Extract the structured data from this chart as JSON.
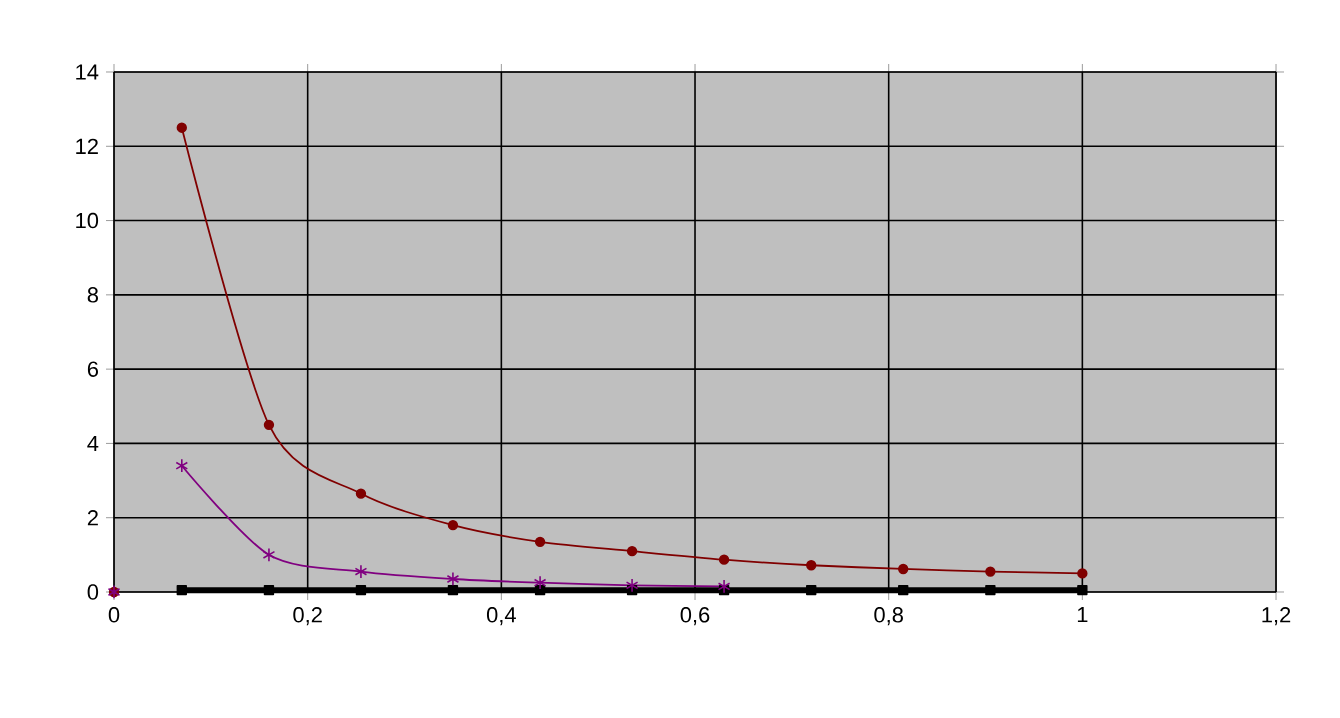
{
  "chart_data": {
    "type": "line",
    "xlim": [
      0,
      1.2
    ],
    "ylim": [
      0,
      14
    ],
    "xticks": [
      0,
      {
        "value": 0.2,
        "label": "0,2"
      },
      {
        "value": 0.4,
        "label": "0,4"
      },
      {
        "value": 0.6,
        "label": "0,6"
      },
      {
        "value": 0.8,
        "label": "0,8"
      },
      1,
      {
        "value": 1.2,
        "label": "1,2"
      }
    ],
    "yticks": [
      0,
      2,
      4,
      6,
      8,
      10,
      12,
      14
    ],
    "grid": true,
    "series": [
      {
        "color": "#000000",
        "marker": "square",
        "x": [
          0.07,
          0.16,
          0.255,
          0.35,
          0.44,
          0.535,
          0.63,
          0.72,
          0.815,
          0.905,
          1.0
        ],
        "values": [
          0.05,
          0.05,
          0.05,
          0.05,
          0.05,
          0.05,
          0.05,
          0.05,
          0.05,
          0.05,
          0.05
        ]
      },
      {
        "color": "#800000",
        "marker": "circle",
        "x": [
          0.07,
          0.16,
          0.255,
          0.35,
          0.44,
          0.535,
          0.63,
          0.72,
          0.815,
          0.905,
          1.0
        ],
        "values": [
          12.5,
          4.5,
          2.65,
          1.8,
          1.35,
          1.1,
          0.87,
          0.72,
          0.62,
          0.55,
          0.5
        ]
      },
      {
        "color": "#800080",
        "marker": "cross",
        "x": [
          0.07,
          0.16,
          0.255,
          0.35,
          0.44,
          0.535,
          0.63
        ],
        "values": [
          3.4,
          1.0,
          0.55,
          0.35,
          0.25,
          0.18,
          0.15
        ]
      },
      {
        "type": "scatter",
        "color": "#800000",
        "marker": "circle",
        "x": [
          0
        ],
        "values": [
          0
        ]
      },
      {
        "type": "scatter",
        "color": "#800080",
        "marker": "cross",
        "x": [
          0
        ],
        "values": [
          0
        ]
      }
    ]
  }
}
